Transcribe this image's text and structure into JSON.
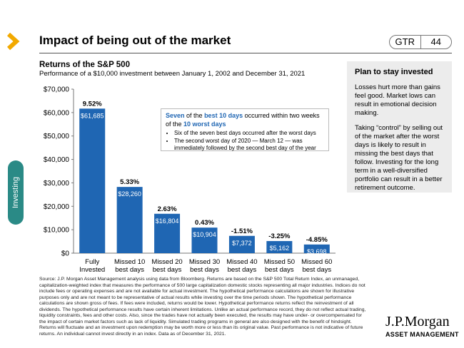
{
  "header": {
    "title": "Impact of being out of the market",
    "code": "GTR",
    "page_number": "44"
  },
  "side_tab": {
    "label": "Investing"
  },
  "chart_data": {
    "type": "bar",
    "title": "Returns of the S&P 500",
    "subtitle": "Performance of a $10,000 investment between January 1, 2002 and December 31, 2021",
    "categories": [
      "Fully\nInvested",
      "Missed 10\nbest days",
      "Missed 20\nbest days",
      "Missed 30\nbest days",
      "Missed 40\nbest days",
      "Missed 50\nbest days",
      "Missed 60\nbest days"
    ],
    "values": [
      61685,
      28260,
      16804,
      10904,
      7372,
      5162,
      3698
    ],
    "value_labels": [
      "$61,685",
      "$28,260",
      "$16,804",
      "$10,904",
      "$7,372",
      "$5,162",
      "$3,698"
    ],
    "return_labels": [
      "9.52%",
      "5.33%",
      "2.63%",
      "0.43%",
      "-1.51%",
      "-3.25%",
      "-4.85%"
    ],
    "yticks": [
      "$0",
      "$10,000",
      "$20,000",
      "$30,000",
      "$40,000",
      "$50,000",
      "$60,000",
      "$70,000"
    ],
    "ylim": [
      0,
      70000
    ],
    "bar_color": "#1f66b3",
    "grid": false
  },
  "callout": {
    "pre": "Seven",
    "mid1": " of the ",
    "highlight1": "best 10 days",
    "mid2": " occurred within two weeks of the ",
    "highlight2": "10 worst days",
    "bullets": [
      "Six of the seven best days occurred after the worst days",
      "The second worst day of 2020 — March 12 — was immediately followed by the second best day of the year"
    ]
  },
  "panel": {
    "title": "Plan to stay invested",
    "paragraphs": [
      "Losses hurt more than gains feel good. Market lows can result in emotional decision making.",
      "Taking “control” by selling out of the market after the worst days is likely to result in missing the best days that follow. Investing for the long term in a well-diversified portfolio can result in a better retirement outcome."
    ]
  },
  "source": "Source: J.P. Morgan Asset Management analysis using data from Bloomberg. Returns are based on the S&P 500 Total Return Index, an unmanaged, capitalization-weighted index that measures the performance of 500 large capitalization domestic stocks representing all major industries. Indices do not include fees or operating expenses and are not available for actual investment. The hypothetical performance calculations are shown for illustrative purposes only and are not meant to be representative of actual results while investing over the time periods shown. The hypothetical performance calculations are shown gross of fees. If fees were included, returns would be lower. Hypothetical performance returns reflect the reinvestment of all dividends. The hypothetical performance results have certain inherent limitations. Unlike an actual performance record, they do not reflect actual trading, liquidity constraints, fees and other costs. Also, since the trades have not actually been executed, the results may have under- or overcompensated for the impact of certain market factors such as lack of liquidity. Simulated trading programs in general are also designed with the benefit of hindsight. Returns will fluctuate and an investment upon redemption may be worth more or less than its original value. Past performance is not indicative of future returns. An individual cannot invest directly in an index. Data as of December 31, 2021.",
  "logo": {
    "name": "J.P.Morgan",
    "sub": "ASSET MANAGEMENT"
  },
  "colors": {
    "accent": "#f2a900",
    "bar": "#1f66b3",
    "tab": "#2a8a86",
    "highlight": "#1f66b3"
  },
  "icons": {
    "nav": "chevron-right-icon"
  }
}
